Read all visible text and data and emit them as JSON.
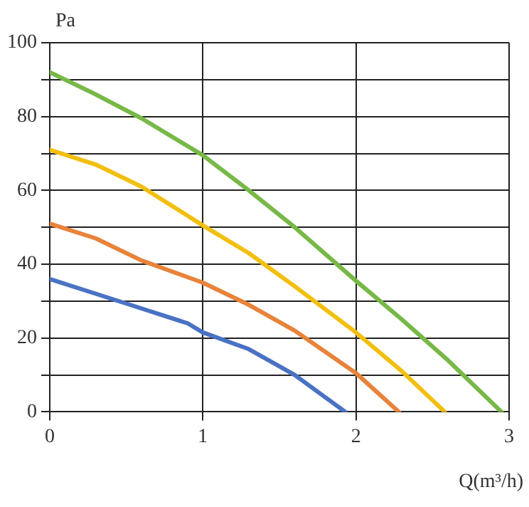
{
  "chart_data": {
    "type": "line",
    "xlabel": "Q(m³/h)",
    "ylabel": "Pa",
    "xlim": [
      0,
      3
    ],
    "xticks": [
      0,
      1,
      2,
      3
    ],
    "ylim": [
      0,
      100
    ],
    "yticks": [
      0,
      {
        "value": 10,
        "label": null
      },
      20,
      {
        "value": 30,
        "label": null
      },
      40,
      {
        "value": 50,
        "label": null
      },
      60,
      {
        "value": 70,
        "label": null
      },
      80,
      {
        "value": 90,
        "label": null
      },
      100
    ],
    "grid": true,
    "legend": false,
    "marker": "none",
    "line_style": "solid",
    "series": [
      {
        "color": "#77b847",
        "x": [
          0,
          0.3,
          0.6,
          1,
          1.3,
          1.6,
          2,
          2.3,
          2.6,
          2.95
        ],
        "values": [
          92,
          86,
          79.5,
          69.5,
          60,
          50,
          35.5,
          25,
          14,
          0
        ]
      },
      {
        "color": "#f2bf0f",
        "x": [
          0,
          0.3,
          0.6,
          1,
          1.3,
          1.6,
          2,
          2.3,
          2.58
        ],
        "values": [
          71,
          67,
          61,
          50.5,
          43,
          34,
          21.5,
          11,
          0
        ]
      },
      {
        "color": "#e8833a",
        "x": [
          0,
          0.3,
          0.6,
          1,
          1.3,
          1.6,
          2,
          2.28
        ],
        "values": [
          51,
          47,
          41,
          35,
          29,
          22,
          10.5,
          0
        ]
      },
      {
        "color": "#4a72c4",
        "x": [
          0,
          0.3,
          0.6,
          0.9,
          1,
          1.3,
          1.6,
          1.93
        ],
        "values": [
          36,
          32,
          28,
          24,
          21.5,
          17,
          10,
          0
        ]
      }
    ]
  }
}
